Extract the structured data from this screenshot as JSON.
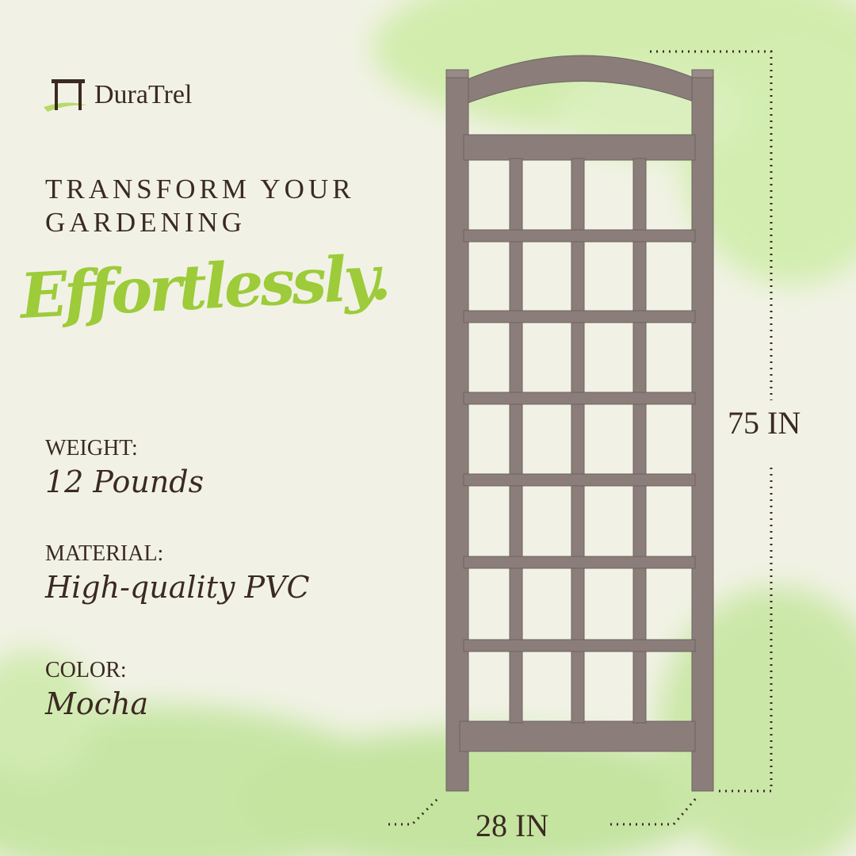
{
  "brand": {
    "name": "DuraTrel"
  },
  "headline": {
    "line1": "TRANSFORM YOUR",
    "line2": "GARDENING",
    "script": "Effortlessly."
  },
  "specs": [
    {
      "label": "WEIGHT:",
      "value": "12 Pounds"
    },
    {
      "label": "MATERIAL:",
      "value": "High-quality PVC"
    },
    {
      "label": "COLOR:",
      "value": "Mocha"
    }
  ],
  "dimensions": {
    "height": "75 IN",
    "width": "28 IN"
  },
  "colors": {
    "background": "#f1f2e5",
    "text": "#3b2a22",
    "accent_green": "#9dcb3a",
    "trellis_mocha": "#8a7d7a"
  }
}
